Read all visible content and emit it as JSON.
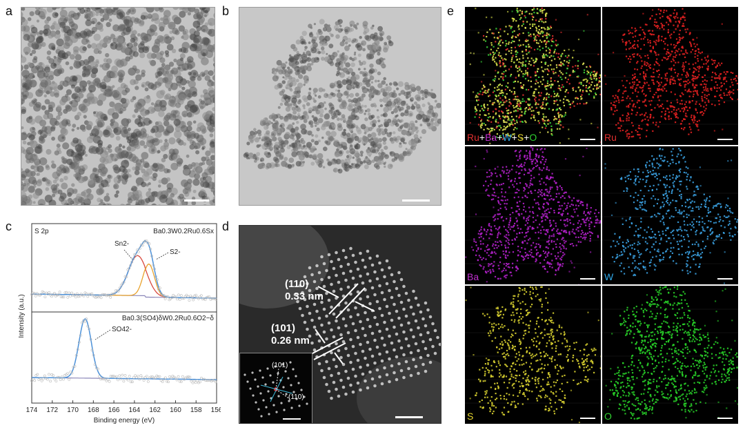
{
  "panels": {
    "a": "a",
    "b": "b",
    "c": "c",
    "d": "d",
    "e": "e"
  },
  "xps": {
    "title": "S 2p",
    "top_sample": "Ba0.3W0.2Ru0.6Sx",
    "bottom_sample": "Ba0.3(SO4)δW0.2Ru0.6O2−δ",
    "peak_labels": {
      "sn": "Sn2-",
      "s": "S2-",
      "so4": "SO42-"
    },
    "ylabel": "Intensity (a.u.)",
    "xlabel": "Binding energy (eV)",
    "xticks": [
      "174",
      "172",
      "170",
      "168",
      "166",
      "164",
      "162",
      "160",
      "158",
      "156"
    ],
    "colors": {
      "fit_red": "#d9473c",
      "fit_orange": "#e9a22c",
      "envelope": "#4a90d9",
      "background": "#8a86b8",
      "raw": "#b9b9b9"
    }
  },
  "hrtem": {
    "label1_plane": "(110)",
    "label1_d": "0.33 nm",
    "label2_plane": "(101)",
    "label2_d": "0.26 nm",
    "fft_label1": "(101)",
    "fft_label2": "(110)"
  },
  "eds": {
    "maps": [
      {
        "parts": [
          {
            "t": "Ru",
            "c": "#e23030"
          },
          {
            "t": "+",
            "c": "#ffffff"
          },
          {
            "t": "Ba",
            "c": "#c030d0"
          },
          {
            "t": "+",
            "c": "#ffffff"
          },
          {
            "t": "W",
            "c": "#30a8e8"
          },
          {
            "t": "+",
            "c": "#ffffff"
          },
          {
            "t": "S",
            "c": "#e8d830"
          },
          {
            "t": "+",
            "c": "#ffffff"
          },
          {
            "t": "O",
            "c": "#30d030"
          }
        ],
        "color": "#c8d840"
      },
      {
        "parts": [
          {
            "t": "Ru",
            "c": "#e23030"
          }
        ],
        "color": "#e02020"
      },
      {
        "parts": [
          {
            "t": "Ba",
            "c": "#c030d0"
          }
        ],
        "color": "#b020c8"
      },
      {
        "parts": [
          {
            "t": "W",
            "c": "#30a8e8"
          }
        ],
        "color": "#3aa0e0"
      },
      {
        "parts": [
          {
            "t": "S",
            "c": "#e8d830"
          }
        ],
        "color": "#d8d030"
      },
      {
        "parts": [
          {
            "t": "O",
            "c": "#30d030"
          }
        ],
        "color": "#28d028"
      }
    ]
  }
}
